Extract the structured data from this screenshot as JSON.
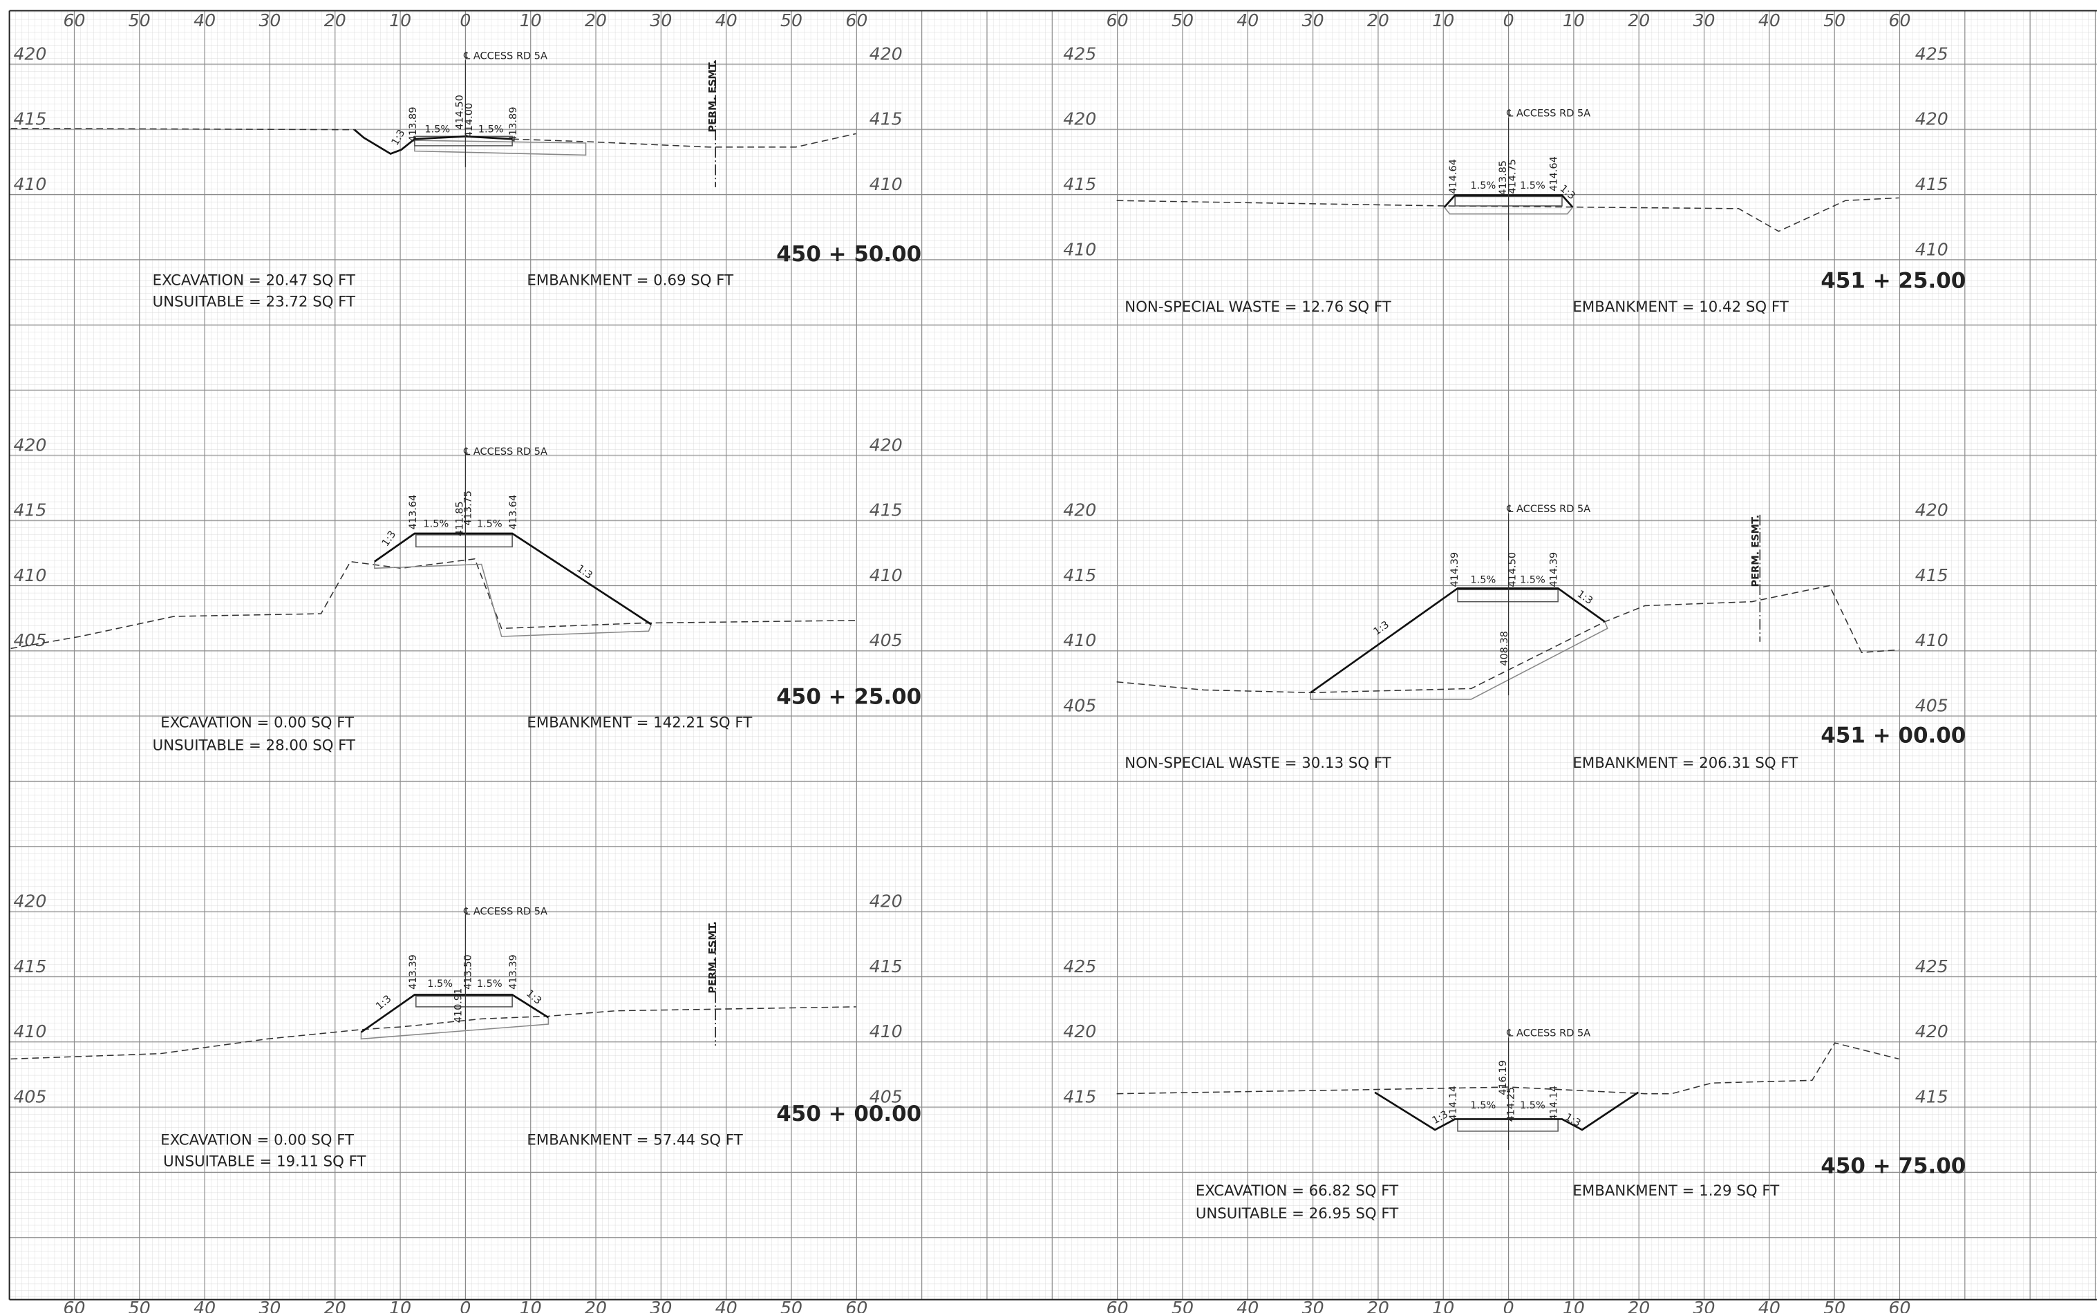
{
  "sheets": [
    {
      "offset_labels": [
        "60",
        "50",
        "40",
        "30",
        "20",
        "10",
        "0",
        "10",
        "20",
        "30",
        "40",
        "50",
        "60"
      ],
      "sections": [
        {
          "station": "450 + 50.00",
          "elevations": [
            420,
            415,
            410
          ],
          "notes": [
            "℄ ACCESS RD 5A",
            "1:3",
            "413.89",
            "1.5%",
            "414.50",
            "414.00",
            "1.5%",
            "413.89",
            "PERM. ESMT."
          ],
          "quantities": [
            "EXCAVATION = 20.47 SQ FT",
            "UNSUITABLE = 23.72 SQ FT",
            "EMBANKMENT = 0.69 SQ FT"
          ]
        },
        {
          "station": "450 + 25.00",
          "elevations": [
            420,
            415,
            410,
            405
          ],
          "notes": [
            "℄ ACCESS RD 5A",
            "1:3",
            "413.64",
            "1.5%",
            "411.85",
            "413.75",
            "1.5%",
            "413.64",
            "1:3"
          ],
          "quantities": [
            "EXCAVATION = 0.00 SQ FT",
            "UNSUITABLE = 28.00 SQ FT",
            "EMBANKMENT = 142.21 SQ FT"
          ]
        },
        {
          "station": "450 + 00.00",
          "elevations": [
            420,
            415,
            410,
            405
          ],
          "notes": [
            "℄ ACCESS RD 5A",
            "1:3",
            "413.39",
            "1.5%",
            "410.91",
            "413.50",
            "1.5%",
            "413.39",
            "1:3",
            "PERM. ESMT."
          ],
          "quantities": [
            "EXCAVATION = 0.00 SQ FT",
            "UNSUITABLE = 19.11 SQ FT",
            "EMBANKMENT = 57.44 SQ FT"
          ]
        }
      ]
    },
    {
      "offset_labels": [
        "60",
        "50",
        "40",
        "30",
        "20",
        "10",
        "0",
        "10",
        "20",
        "30",
        "40",
        "50",
        "60"
      ],
      "sections": [
        {
          "station": "451 + 25.00",
          "elevations": [
            425,
            420,
            415,
            410
          ],
          "notes": [
            "℄ ACCESS RD 5A",
            "414.64",
            "1.5%",
            "413.85",
            "414.75",
            "1.5%",
            "414.64",
            "1:3"
          ],
          "quantities": [
            "NON-SPECIAL WASTE = 12.76 SQ FT",
            "EMBANKMENT = 10.42 SQ FT"
          ]
        },
        {
          "station": "451 + 00.00",
          "elevations": [
            420,
            415,
            410,
            405
          ],
          "notes": [
            "℄ ACCESS RD 5A",
            "1:3",
            "414.39",
            "1.5%",
            "408.38",
            "414.50",
            "1.5%",
            "414.39",
            "1:3",
            "PERM. ESMT."
          ],
          "quantities": [
            "NON-SPECIAL WASTE = 30.13 SQ FT",
            "EMBANKMENT = 206.31 SQ FT"
          ]
        },
        {
          "station": "450 + 75.00",
          "elevations": [
            425,
            420,
            415
          ],
          "notes": [
            "℄ ACCESS RD 5A",
            "1:3",
            "414.14",
            "1.5%",
            "416.19",
            "414.25",
            "1.5%",
            "414.14",
            "1:3"
          ],
          "quantities": [
            "EXCAVATION = 66.82 SQ FT",
            "UNSUITABLE = 26.95 SQ FT",
            "EMBANKMENT = 1.29 SQ FT"
          ]
        }
      ]
    }
  ]
}
